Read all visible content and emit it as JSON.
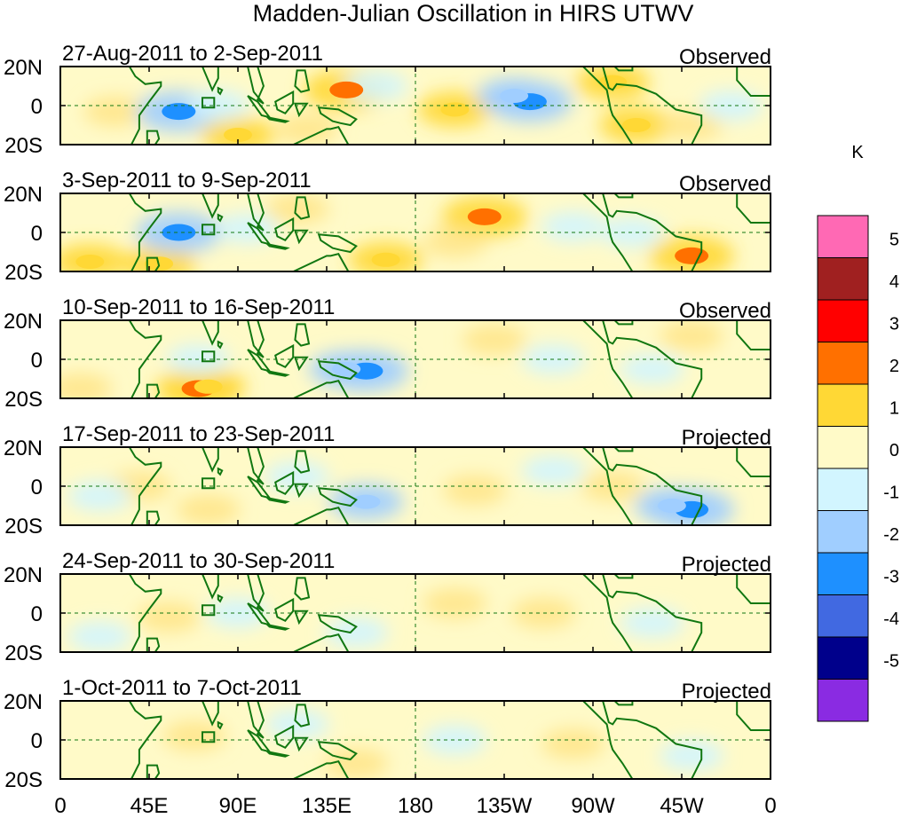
{
  "chart_data": {
    "type": "heatmap",
    "title": "Madden-Julian Oscillation in HIRS UTWV",
    "colorbar": {
      "unit": "K",
      "labels": [
        "5",
        "4",
        "3",
        "2",
        "1",
        "0",
        "-1",
        "-2",
        "-3",
        "-4",
        "-5"
      ],
      "colors": [
        "#ff69b4",
        "#a02020",
        "#ff0000",
        "#ff7000",
        "#ffd835",
        "#fffac8",
        "#d2f5ff",
        "#a0ceff",
        "#1e90ff",
        "#4169e1",
        "#00008b",
        "#8a2be2"
      ]
    },
    "x_ticks": [
      "0",
      "45E",
      "90E",
      "135E",
      "180",
      "135W",
      "90W",
      "45W",
      "0"
    ],
    "y_ticks": [
      "20N",
      "0",
      "20S"
    ],
    "xlim": [
      0,
      360
    ],
    "ylim": [
      -20,
      20
    ],
    "panels": [
      {
        "period": "27-Aug-2011 to 2-Sep-2011",
        "status": "Observed",
        "anomalies": [
          {
            "lon": 145,
            "lat": 8,
            "value": 3
          },
          {
            "lon": 280,
            "lat": 12,
            "value": 2
          },
          {
            "lon": 200,
            "lat": -2,
            "value": 2
          },
          {
            "lon": 90,
            "lat": -15,
            "value": 2
          },
          {
            "lon": 292,
            "lat": -10,
            "value": 2
          },
          {
            "lon": 28,
            "lat": -3,
            "value": 1
          },
          {
            "lon": 125,
            "lat": -12,
            "value": 1
          },
          {
            "lon": 320,
            "lat": -10,
            "value": 1
          },
          {
            "lon": 60,
            "lat": -3,
            "value": -3
          },
          {
            "lon": 80,
            "lat": 0,
            "value": -1
          },
          {
            "lon": 238,
            "lat": 2,
            "value": -3
          },
          {
            "lon": 230,
            "lat": 5,
            "value": -2
          },
          {
            "lon": 160,
            "lat": 10,
            "value": -1
          },
          {
            "lon": 340,
            "lat": 0,
            "value": -1
          }
        ]
      },
      {
        "period": "3-Sep-2011 to 9-Sep-2011",
        "status": "Observed",
        "anomalies": [
          {
            "lon": 215,
            "lat": 8,
            "value": 3
          },
          {
            "lon": 320,
            "lat": -12,
            "value": 3
          },
          {
            "lon": 15,
            "lat": -15,
            "value": 2
          },
          {
            "lon": 50,
            "lat": -16,
            "value": 2
          },
          {
            "lon": 165,
            "lat": -14,
            "value": 2
          },
          {
            "lon": 120,
            "lat": 12,
            "value": 1
          },
          {
            "lon": 200,
            "lat": -5,
            "value": 1
          },
          {
            "lon": 60,
            "lat": 0,
            "value": -3
          },
          {
            "lon": 95,
            "lat": 2,
            "value": -1
          },
          {
            "lon": 260,
            "lat": 3,
            "value": -1
          },
          {
            "lon": 290,
            "lat": 0,
            "value": -1
          }
        ]
      },
      {
        "period": "10-Sep-2011 to 16-Sep-2011",
        "status": "Observed",
        "anomalies": [
          {
            "lon": 70,
            "lat": -15,
            "value": 3
          },
          {
            "lon": 75,
            "lat": -14,
            "value": 2
          },
          {
            "lon": 10,
            "lat": -15,
            "value": 1
          },
          {
            "lon": 220,
            "lat": 10,
            "value": 1
          },
          {
            "lon": 320,
            "lat": 12,
            "value": 1
          },
          {
            "lon": 155,
            "lat": -6,
            "value": -3
          },
          {
            "lon": 145,
            "lat": -5,
            "value": -2
          },
          {
            "lon": 70,
            "lat": 0,
            "value": -1
          },
          {
            "lon": 250,
            "lat": 0,
            "value": -1
          },
          {
            "lon": 300,
            "lat": -5,
            "value": -1
          }
        ]
      },
      {
        "period": "17-Sep-2011 to 23-Sep-2011",
        "status": "Projected",
        "anomalies": [
          {
            "lon": 75,
            "lat": -12,
            "value": 1
          },
          {
            "lon": 40,
            "lat": 0,
            "value": 1
          },
          {
            "lon": 210,
            "lat": -2,
            "value": 1
          },
          {
            "lon": 280,
            "lat": 0,
            "value": 1
          },
          {
            "lon": 155,
            "lat": -8,
            "value": -2
          },
          {
            "lon": 320,
            "lat": -12,
            "value": -3
          },
          {
            "lon": 310,
            "lat": -10,
            "value": -2
          },
          {
            "lon": 120,
            "lat": 5,
            "value": -1
          },
          {
            "lon": 20,
            "lat": -5,
            "value": -1
          },
          {
            "lon": 250,
            "lat": 8,
            "value": -1
          }
        ]
      },
      {
        "period": "24-Sep-2011 to 30-Sep-2011",
        "status": "Projected",
        "anomalies": [
          {
            "lon": 55,
            "lat": -2,
            "value": 1
          },
          {
            "lon": 245,
            "lat": 0,
            "value": 1
          },
          {
            "lon": 200,
            "lat": 5,
            "value": 1
          },
          {
            "lon": 150,
            "lat": -10,
            "value": -1
          },
          {
            "lon": 90,
            "lat": 0,
            "value": -1
          },
          {
            "lon": 300,
            "lat": -5,
            "value": -1
          },
          {
            "lon": 20,
            "lat": -12,
            "value": -1
          }
        ]
      },
      {
        "period": "1-Oct-2011 to 7-Oct-2011",
        "status": "Projected",
        "anomalies": [
          {
            "lon": 68,
            "lat": 2,
            "value": 1
          },
          {
            "lon": 260,
            "lat": -2,
            "value": 1
          },
          {
            "lon": 150,
            "lat": -12,
            "value": 1
          },
          {
            "lon": 120,
            "lat": 8,
            "value": -1
          },
          {
            "lon": 200,
            "lat": 0,
            "value": -1
          },
          {
            "lon": 320,
            "lat": -8,
            "value": -1
          }
        ]
      }
    ],
    "reference_line_lon": 180,
    "reference_line_lat": 0
  }
}
